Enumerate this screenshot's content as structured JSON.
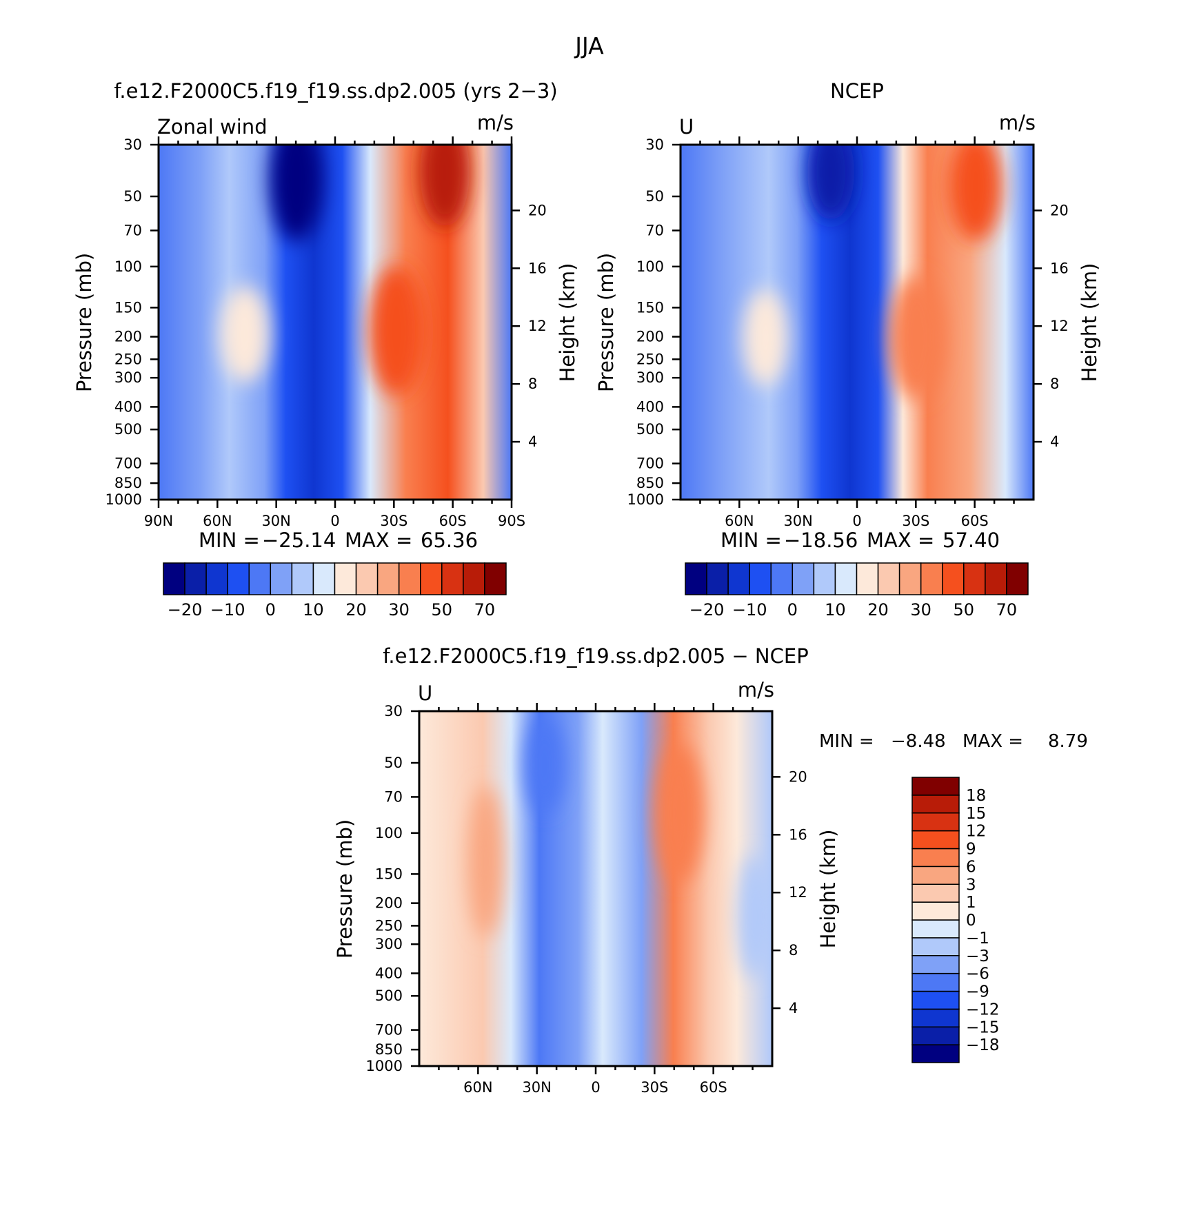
{
  "figure": {
    "title": "JJA",
    "panels": [
      {
        "id": "model",
        "title": "f.e12.F2000C5.f19_f19.ss.dp2.005 (yrs 2−3)",
        "left_label": "Zonal wind",
        "right_label": "m/s",
        "stats": {
          "min_label": "MIN =",
          "min": "−25.14",
          "max_label": "MAX =",
          "max": "65.36"
        }
      },
      {
        "id": "ncep",
        "title": "NCEP",
        "left_label": "U",
        "right_label": "m/s",
        "stats": {
          "min_label": "MIN =",
          "min": "−18.56",
          "max_label": "MAX =",
          "max": "57.40"
        }
      },
      {
        "id": "diff",
        "title": "f.e12.F2000C5.f19_f19.ss.dp2.005 − NCEP",
        "left_label": "U",
        "right_label": "m/s",
        "stats": {
          "min_label": "MIN =",
          "min": "−8.48",
          "max_label": "MAX =",
          "max": "8.79"
        }
      }
    ]
  },
  "chart_data": [
    {
      "type": "heatmap",
      "title": "f.e12.F2000C5.f19_f19.ss.dp2.005 (yrs 2−3)",
      "ylabel": "Pressure (mb)",
      "y2label": "Height (km)",
      "x_ticklabels": [
        "90N",
        "60N",
        "30N",
        "0",
        "30S",
        "60S",
        "90S"
      ],
      "x_tickvalues": [
        -90,
        -60,
        -30,
        0,
        30,
        60,
        90
      ],
      "y_ticklabels": [
        "30",
        "50",
        "70",
        "100",
        "150",
        "200",
        "250",
        "300",
        "400",
        "500",
        "700",
        "850",
        "1000"
      ],
      "y_tickvalues": [
        30,
        50,
        70,
        100,
        150,
        200,
        250,
        300,
        400,
        500,
        700,
        850,
        1000
      ],
      "y2_ticklabels": [
        "20",
        "16",
        "12",
        "8",
        "4"
      ],
      "y2_tickvalues": [
        20,
        16,
        12,
        8,
        4
      ],
      "ylim": [
        1000,
        30
      ],
      "y_scale": "log",
      "units": "m/s",
      "min": -25.14,
      "max": 65.36,
      "colorbar": {
        "orientation": "horizontal",
        "colors": [
          "#000080",
          "#0a1fa8",
          "#0f36d0",
          "#1e50f2",
          "#4d78f5",
          "#7fa1f7",
          "#b0c9fa",
          "#d9e9fc",
          "#fde9da",
          "#fbc9b0",
          "#f9a680",
          "#f97f4f",
          "#f5501e",
          "#d83212",
          "#b81c08",
          "#800000"
        ],
        "labels": [
          "−20",
          "−10",
          "0",
          "10",
          "20",
          "30",
          "50",
          "70"
        ]
      },
      "features": [
        {
          "level": "-20",
          "lat": -15,
          "p": 50,
          "value": -25
        },
        {
          "level": "15",
          "lat": -45,
          "p": 200,
          "value": 15
        },
        {
          "level": "45",
          "lat": 25,
          "p": 180,
          "value": 45
        },
        {
          "level": "65",
          "lat": 55,
          "p": 35,
          "value": 65
        }
      ]
    },
    {
      "type": "heatmap",
      "title": "NCEP",
      "ylabel": "Pressure (mb)",
      "y2label": "Height (km)",
      "x_ticklabels": [
        "60N",
        "30N",
        "0",
        "30S",
        "60S"
      ],
      "x_tickvalues": [
        -60,
        -30,
        0,
        30,
        60
      ],
      "y_ticklabels": [
        "30",
        "50",
        "70",
        "100",
        "150",
        "200",
        "250",
        "300",
        "400",
        "500",
        "700",
        "850",
        "1000"
      ],
      "y_tickvalues": [
        30,
        50,
        70,
        100,
        150,
        200,
        250,
        300,
        400,
        500,
        700,
        850,
        1000
      ],
      "y2_ticklabels": [
        "20",
        "16",
        "12",
        "8",
        "4"
      ],
      "y2_tickvalues": [
        20,
        16,
        12,
        8,
        4
      ],
      "ylim": [
        1000,
        30
      ],
      "y_scale": "log",
      "units": "m/s",
      "min": -18.56,
      "max": 57.4,
      "colorbar": {
        "orientation": "horizontal",
        "colors": [
          "#000080",
          "#0a1fa8",
          "#0f36d0",
          "#1e50f2",
          "#4d78f5",
          "#7fa1f7",
          "#b0c9fa",
          "#d9e9fc",
          "#fde9da",
          "#fbc9b0",
          "#f9a680",
          "#f97f4f",
          "#f5501e",
          "#d83212",
          "#b81c08",
          "#800000"
        ],
        "labels": [
          "−20",
          "−10",
          "0",
          "10",
          "20",
          "30",
          "50",
          "70"
        ]
      },
      "features": [
        {
          "level": "-15",
          "lat": -15,
          "p": 40,
          "value": -18
        },
        {
          "level": "15",
          "lat": -45,
          "p": 200,
          "value": 15
        },
        {
          "level": "35",
          "lat": 30,
          "p": 180,
          "value": 35
        },
        {
          "level": "55",
          "lat": 60,
          "p": 45,
          "value": 57
        }
      ]
    },
    {
      "type": "heatmap",
      "title": "f.e12.F2000C5.f19_f19.ss.dp2.005 − NCEP",
      "ylabel": "Pressure (mb)",
      "y2label": "Height (km)",
      "x_ticklabels": [
        "60N",
        "30N",
        "0",
        "30S",
        "60S"
      ],
      "x_tickvalues": [
        -60,
        -30,
        0,
        30,
        60
      ],
      "y_ticklabels": [
        "30",
        "50",
        "70",
        "100",
        "150",
        "200",
        "250",
        "300",
        "400",
        "500",
        "700",
        "850",
        "1000"
      ],
      "y_tickvalues": [
        30,
        50,
        70,
        100,
        150,
        200,
        250,
        300,
        400,
        500,
        700,
        850,
        1000
      ],
      "y2_ticklabels": [
        "20",
        "16",
        "12",
        "8",
        "4"
      ],
      "y2_tickvalues": [
        20,
        16,
        12,
        8,
        4
      ],
      "ylim": [
        1000,
        30
      ],
      "y_scale": "log",
      "units": "m/s",
      "min": -8.48,
      "max": 8.79,
      "colorbar": {
        "orientation": "vertical",
        "colors": [
          "#000080",
          "#0a1fa8",
          "#0f36d0",
          "#1e50f2",
          "#4d78f5",
          "#7fa1f7",
          "#b0c9fa",
          "#d9e9fc",
          "#fde9da",
          "#fbc9b0",
          "#f9a680",
          "#f97f4f",
          "#f5501e",
          "#d83212",
          "#b81c08",
          "#800000"
        ],
        "labels": [
          "18",
          "15",
          "12",
          "9",
          "6",
          "3",
          "1",
          "0",
          "−1",
          "−3",
          "−6",
          "−9",
          "−12",
          "−15",
          "−18"
        ]
      },
      "features": [
        {
          "level": "3",
          "lat": -55,
          "p": 150,
          "value": 4
        },
        {
          "level": "-6",
          "lat": -22,
          "p": 60,
          "value": -7
        },
        {
          "level": "6",
          "lat": 35,
          "p": 150,
          "value": 8
        },
        {
          "level": "-3",
          "lat": 75,
          "p": 400,
          "value": -3
        }
      ]
    }
  ]
}
